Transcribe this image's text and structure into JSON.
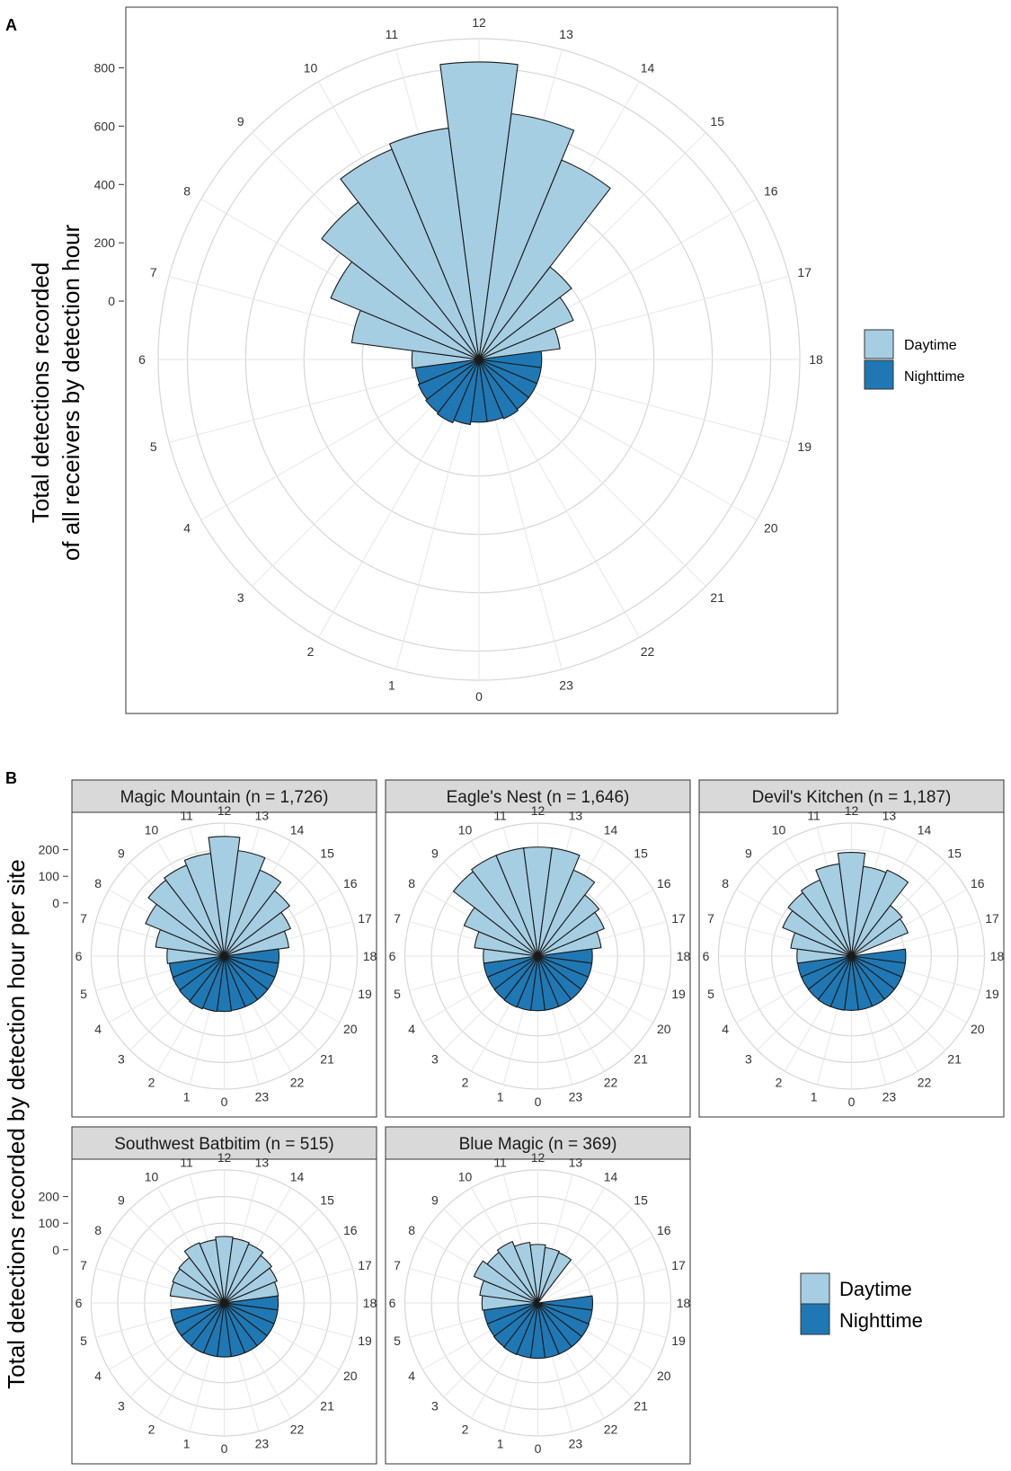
{
  "panels": {
    "a_label": "A",
    "b_label": "B",
    "a_ylabel_line1": "Total detections recorded",
    "a_ylabel_line2": "of all receivers by detection hour",
    "b_ylabel": "Total detections recorded by detection hour per site"
  },
  "legend": {
    "items": [
      {
        "label": "Daytime",
        "color": "#a6cee3"
      },
      {
        "label": "Nighttime",
        "color": "#1f78b4"
      }
    ]
  },
  "colors": {
    "day": "#a6cee3",
    "night": "#1f78b4",
    "grid": "#d6d6d6",
    "strip": "#d9d9d9"
  },
  "chart_data": [
    {
      "type": "bar",
      "subtype": "polar-rose",
      "title": "",
      "ylabel": "Total detections recorded of all receivers by detection hour",
      "categories": [
        "0",
        "1",
        "2",
        "3",
        "4",
        "5",
        "6",
        "7",
        "8",
        "9",
        "10",
        "11",
        "12",
        "13",
        "14",
        "15",
        "16",
        "17",
        "18",
        "19",
        "20",
        "21",
        "22",
        "23"
      ],
      "series": [
        {
          "name": "Daytime",
          "values": [
            0,
            0,
            0,
            0,
            0,
            0,
            30,
            240,
            350,
            480,
            580,
            600,
            820,
            650,
            540,
            200,
            150,
            80,
            0,
            0,
            0,
            0,
            0,
            0
          ]
        },
        {
          "name": "Nighttime",
          "values": [
            15,
            25,
            35,
            30,
            25,
            20,
            0,
            0,
            0,
            0,
            0,
            0,
            0,
            0,
            0,
            0,
            0,
            0,
            15,
            15,
            15,
            15,
            20,
            15
          ]
        }
      ],
      "yticks": [
        0,
        200,
        400,
        600,
        800
      ],
      "ylim": [
        -200,
        900
      ]
    },
    {
      "type": "bar",
      "subtype": "polar-rose-facets",
      "ylabel": "Total detections recorded by detection hour per site",
      "categories": [
        "0",
        "1",
        "2",
        "3",
        "4",
        "5",
        "6",
        "7",
        "8",
        "9",
        "10",
        "11",
        "12",
        "13",
        "14",
        "15",
        "16",
        "17",
        "18",
        "19",
        "20",
        "21",
        "22",
        "23"
      ],
      "yticks": [
        0,
        100,
        200
      ],
      "ylim": [
        -200,
        300
      ],
      "facets": [
        {
          "title": "Magic Mountain (n = 1,726)",
          "series": [
            {
              "name": "Daytime",
              "values": [
                0,
                0,
                0,
                0,
                0,
                0,
                15,
                60,
                120,
                160,
                170,
                190,
                250,
                200,
                150,
                110,
                70,
                45,
                0,
                0,
                0,
                0,
                0,
                0
              ]
            },
            {
              "name": "Nighttime",
              "values": [
                8,
                10,
                15,
                12,
                10,
                8,
                0,
                0,
                0,
                0,
                0,
                0,
                0,
                0,
                0,
                0,
                0,
                0,
                6,
                6,
                6,
                6,
                6,
                6
              ]
            }
          ]
        },
        {
          "title": "Eagle's Nest (n = 1,646)",
          "series": [
            {
              "name": "Daytime",
              "values": [
                0,
                0,
                0,
                0,
                0,
                0,
                5,
                40,
                100,
                200,
                210,
                210,
                210,
                210,
                150,
                90,
                70,
                40,
                0,
                0,
                0,
                0,
                0,
                0
              ]
            },
            {
              "name": "Nighttime",
              "values": [
                5,
                6,
                8,
                6,
                5,
                5,
                0,
                0,
                0,
                0,
                0,
                0,
                0,
                0,
                0,
                0,
                0,
                0,
                5,
                5,
                5,
                5,
                5,
                5
              ]
            }
          ]
        },
        {
          "title": "Devil's Kitchen (n = 1,187)",
          "series": [
            {
              "name": "Daytime",
              "values": [
                0,
                0,
                0,
                0,
                0,
                0,
                5,
                30,
                80,
                100,
                110,
                150,
                190,
                140,
                150,
                40,
                30,
                0,
                0,
                0,
                0,
                0,
                0,
                0
              ]
            },
            {
              "name": "Nighttime",
              "values": [
                4,
                5,
                6,
                5,
                4,
                4,
                0,
                0,
                0,
                0,
                0,
                0,
                0,
                0,
                0,
                0,
                0,
                0,
                4,
                4,
                4,
                4,
                4,
                4
              ]
            }
          ]
        },
        {
          "title": "Southwest Batbitim (n = 515)",
          "series": [
            {
              "name": "Daytime",
              "values": [
                0,
                0,
                0,
                0,
                0,
                0,
                0,
                5,
                10,
                15,
                45,
                40,
                50,
                45,
                40,
                25,
                15,
                5,
                0,
                0,
                0,
                0,
                0,
                0
              ]
            },
            {
              "name": "Nighttime",
              "values": [
                3,
                3,
                4,
                3,
                3,
                3,
                0,
                0,
                0,
                0,
                0,
                0,
                0,
                0,
                0,
                0,
                0,
                0,
                3,
                3,
                3,
                3,
                3,
                3
              ]
            }
          ]
        },
        {
          "title": "Blue Magic (n = 369)",
          "series": [
            {
              "name": "Daytime",
              "values": [
                0,
                0,
                0,
                0,
                0,
                0,
                10,
                20,
                60,
                40,
                50,
                30,
                20,
                10,
                5,
                0,
                0,
                0,
                0,
                0,
                0,
                0,
                0,
                0
              ]
            },
            {
              "name": "Nighttime",
              "values": [
                8,
                8,
                10,
                8,
                6,
                5,
                0,
                0,
                0,
                0,
                0,
                0,
                0,
                0,
                0,
                0,
                0,
                0,
                6,
                6,
                8,
                8,
                8,
                8
              ]
            }
          ]
        }
      ]
    }
  ]
}
